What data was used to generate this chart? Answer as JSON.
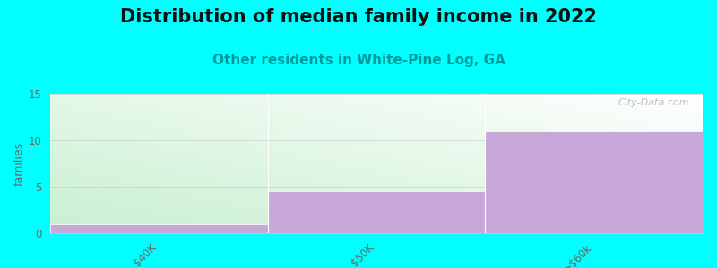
{
  "title": "Distribution of median family income in 2022",
  "subtitle": "Other residents in White-Pine Log, GA",
  "categories": [
    "$40K",
    "$50K",
    ">$60k"
  ],
  "values": [
    1,
    4.5,
    11
  ],
  "bar_color": "#c8a8d8",
  "background_color": "#00ffff",
  "plot_bg_color_bottom_left": "#c8f0d0",
  "plot_bg_color_top_right": "#f8f8ff",
  "ylabel": "families",
  "ylim": [
    0,
    15
  ],
  "yticks": [
    0,
    5,
    10,
    15
  ],
  "title_fontsize": 15,
  "subtitle_fontsize": 11,
  "subtitle_color": "#009999",
  "watermark": "City-Data.com",
  "tick_label_color": "#666666",
  "grid_color": "#cccccc",
  "title_color": "#111111"
}
